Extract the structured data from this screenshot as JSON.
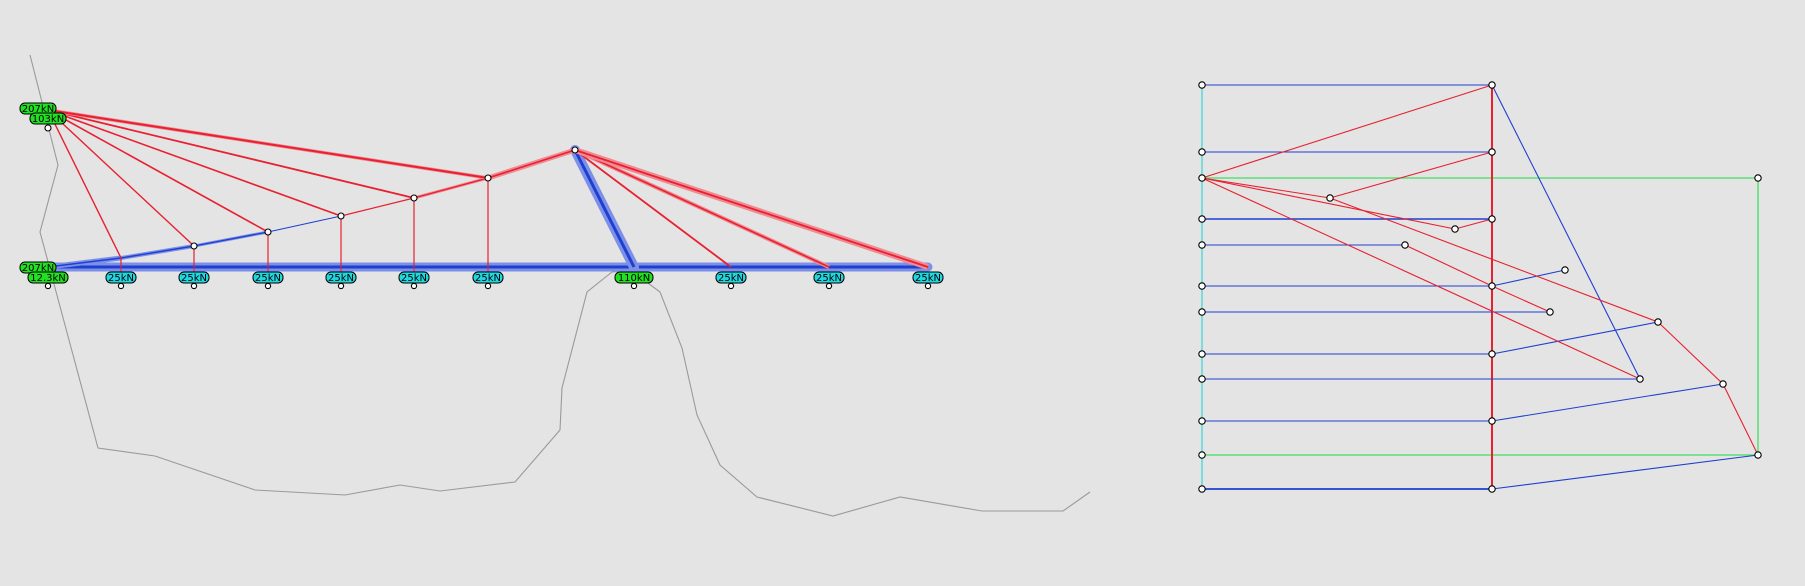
{
  "colors": {
    "background": "#e4e4e4",
    "tension": "#e8202f",
    "tension_glow": "#f08a93",
    "compression": "#1e3fd0",
    "compression_glow": "#7d90e8",
    "terrain": "#9a9a9a",
    "reaction_green": "#22e022",
    "load_cyan": "#22d8e0",
    "force_green": "#40dd60",
    "force_cyan": "#40d8d8"
  },
  "structure": {
    "support_top_labels": [
      "207kN",
      "103kN"
    ],
    "support_bottom_labels": [
      "207kN",
      "12.3kN"
    ],
    "pier_label": "110kN",
    "deck_load_labels": [
      "25kN",
      "25kN",
      "25kN",
      "25kN",
      "25kN",
      "25kN",
      "25kN",
      "25kN",
      "25kN"
    ]
  }
}
